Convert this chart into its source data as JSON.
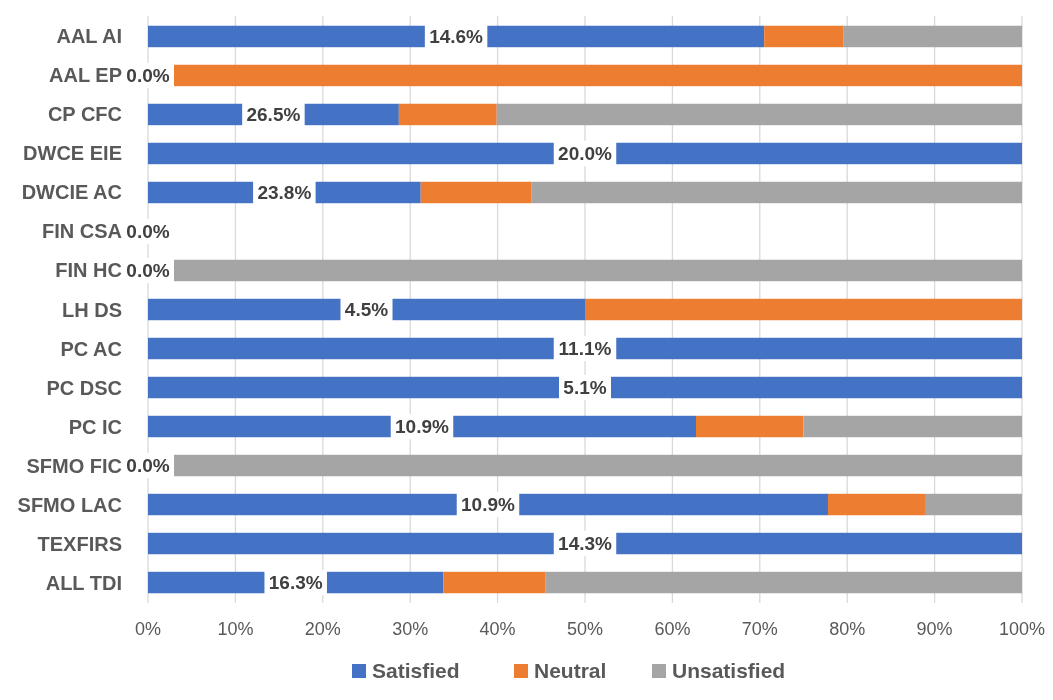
{
  "chart_data": {
    "type": "bar",
    "orientation": "horizontal",
    "stacked": true,
    "categories": [
      "AAL AI",
      "AAL EP",
      "CP CFC",
      "DWCE EIE",
      "DWCIE AC",
      "FIN CSA",
      "FIN HC",
      "LH DS",
      "PC AC",
      "PC DSC",
      "PC IC",
      "SFMO FIC",
      "SFMO LAC",
      "TEXFIRS",
      "ALL TDI"
    ],
    "series": [
      {
        "name": "Satisfied",
        "color": "#4472c4",
        "values": [
          70.5,
          0,
          28.7,
          100,
          31.2,
          0,
          0,
          50,
          100,
          100,
          62.7,
          0,
          77.8,
          100,
          33.8
        ]
      },
      {
        "name": "Neutral",
        "color": "#ed7d31",
        "values": [
          9.1,
          100,
          11.2,
          0,
          12.7,
          0,
          0,
          50,
          0,
          0,
          12.3,
          0,
          11.1,
          0,
          11.7
        ]
      },
      {
        "name": "Unsatisfied",
        "color": "#a5a5a5",
        "values": [
          20.4,
          0,
          60.1,
          0,
          56.1,
          0,
          100,
          0,
          0,
          0,
          25,
          100,
          11.1,
          0,
          54.5
        ]
      }
    ],
    "annotations": [
      "14.6%",
      "0.0%",
      "26.5%",
      "20.0%",
      "23.8%",
      "0.0%",
      "0.0%",
      "4.5%",
      "11.1%",
      "5.1%",
      "10.9%",
      "0.0%",
      "10.9%",
      "14.3%",
      "16.3%"
    ],
    "xlim": [
      0,
      100
    ],
    "xticks": [
      {
        "value": 0,
        "label": "0%"
      },
      {
        "value": 10,
        "label": "10%"
      },
      {
        "value": 20,
        "label": "20%"
      },
      {
        "value": 30,
        "label": "30%"
      },
      {
        "value": 40,
        "label": "40%"
      },
      {
        "value": 50,
        "label": "50%"
      },
      {
        "value": 60,
        "label": "60%"
      },
      {
        "value": 70,
        "label": "70%"
      },
      {
        "value": 80,
        "label": "80%"
      },
      {
        "value": 90,
        "label": "90%"
      },
      {
        "value": 100,
        "label": "100%"
      }
    ],
    "grid": "x",
    "legend": "bottom"
  }
}
